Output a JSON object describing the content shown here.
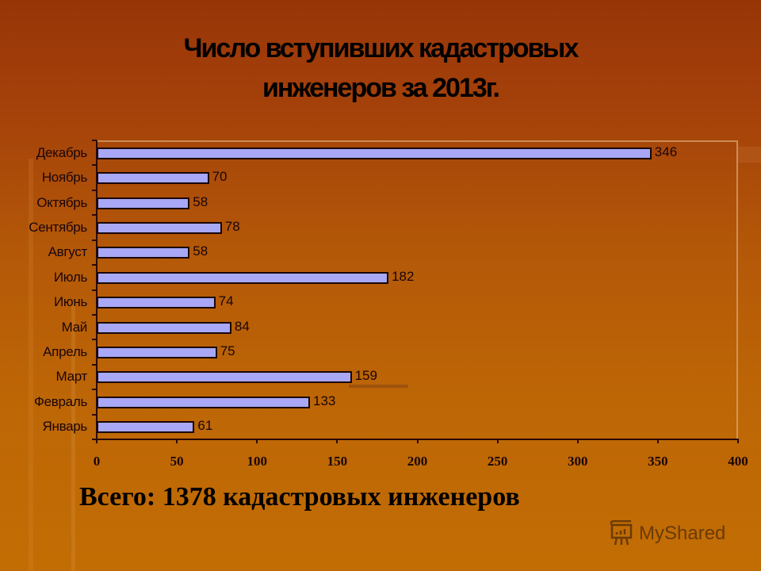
{
  "slide": {
    "title_line1": "Число вступивших кадастровых",
    "title_line2": "инженеров за 2013г.",
    "total_text": "Всего: 1378 кадастровых инженеров",
    "watermark": "MyShared"
  },
  "chart_data": {
    "type": "bar",
    "orientation": "horizontal",
    "title": "Число вступивших кадастровых инженеров за 2013г.",
    "xlabel": "",
    "ylabel": "",
    "categories": [
      "Декабрь",
      "Ноябрь",
      "Октябрь",
      "Сентябрь",
      "Август",
      "Июль",
      "Июнь",
      "Май",
      "Апрель",
      "Март",
      "Февраль",
      "Январь"
    ],
    "values": [
      346,
      70,
      58,
      78,
      58,
      182,
      74,
      84,
      75,
      159,
      133,
      61
    ],
    "data_labels": [
      "346",
      "70",
      "58",
      "78",
      "58",
      "182",
      "74",
      "84",
      "75",
      "159",
      "133",
      "61"
    ],
    "xlim": [
      0,
      400
    ],
    "x_ticks": [
      "0",
      "50",
      "100",
      "150",
      "200",
      "250",
      "300",
      "350",
      "400"
    ],
    "grid": false,
    "legend": null,
    "bar_color": "#a8a8f6",
    "bar_border_color": "#1a0608",
    "background_color": "#b45908"
  }
}
